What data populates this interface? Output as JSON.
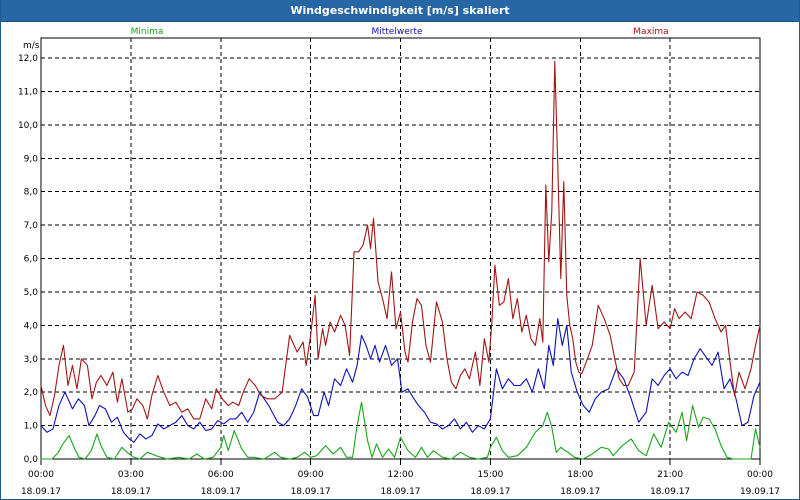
{
  "window": {
    "title": "Windgeschwindigkeit [m/s] skaliert"
  },
  "colors": {
    "title_bar": "#2766a4",
    "minima": "#18a61b",
    "mittelwerte": "#0d12b8",
    "maxima": "#a31515",
    "grid": "#000000",
    "text": "#000000"
  },
  "chart_data": {
    "type": "line",
    "ylabel": "m/s",
    "ylim": [
      0,
      12.6
    ],
    "yticks": [
      {
        "value": 0,
        "label": "0,0"
      },
      {
        "value": 1,
        "label": "1,0"
      },
      {
        "value": 2,
        "label": "2,0"
      },
      {
        "value": 3,
        "label": "3,0"
      },
      {
        "value": 4,
        "label": "4,0"
      },
      {
        "value": 5,
        "label": "5,0"
      },
      {
        "value": 6,
        "label": "6,0"
      },
      {
        "value": 7,
        "label": "7,0"
      },
      {
        "value": 8,
        "label": "8,0"
      },
      {
        "value": 9,
        "label": "9,0"
      },
      {
        "value": 10,
        "label": "10,0"
      },
      {
        "value": 11,
        "label": "11,0"
      },
      {
        "value": 12,
        "label": "12,0"
      }
    ],
    "xlim": [
      0,
      24
    ],
    "xticks": [
      {
        "value": 0,
        "time": "00:00",
        "date": "18.09.17"
      },
      {
        "value": 3,
        "time": "03:00",
        "date": "18.09.17"
      },
      {
        "value": 6,
        "time": "06:00",
        "date": "18.09.17"
      },
      {
        "value": 9,
        "time": "09:00",
        "date": "18.09.17"
      },
      {
        "value": 12,
        "time": "12:00",
        "date": "18.09.17"
      },
      {
        "value": 15,
        "time": "15:00",
        "date": "18.09.17"
      },
      {
        "value": 18,
        "time": "18:00",
        "date": "18.09.17"
      },
      {
        "value": 21,
        "time": "21:00",
        "date": "18.09.17"
      },
      {
        "value": 24,
        "time": "00:00",
        "date": "19.09.17"
      }
    ],
    "grid": true,
    "legend_placement": "top",
    "series": [
      {
        "name": "Minima",
        "color": "#18a61b",
        "x": [
          0.0,
          0.37,
          0.58,
          0.73,
          0.94,
          1.1,
          1.27,
          1.47,
          1.68,
          1.87,
          2.0,
          2.2,
          2.45,
          2.7,
          2.9,
          3.1,
          3.3,
          3.55,
          3.9,
          4.2,
          4.6,
          4.95,
          5.2,
          5.45,
          5.75,
          6.0,
          6.1,
          6.25,
          6.45,
          6.7,
          6.9,
          7.1,
          7.45,
          7.8,
          8.0,
          8.3,
          8.55,
          8.8,
          9.0,
          9.2,
          9.5,
          9.75,
          10.0,
          10.2,
          10.4,
          10.55,
          10.7,
          10.9,
          11.05,
          11.2,
          11.4,
          11.6,
          11.8,
          12.0,
          12.25,
          12.5,
          12.7,
          12.9,
          13.1,
          13.4,
          13.7,
          14.0,
          14.3,
          14.6,
          14.9,
          15.0,
          15.2,
          15.4,
          15.6,
          15.9,
          16.2,
          16.5,
          16.75,
          16.9,
          17.05,
          17.2,
          17.35,
          17.5,
          17.6,
          17.8,
          18.1,
          18.4,
          18.7,
          18.95,
          19.1,
          19.4,
          19.7,
          19.95,
          20.2,
          20.45,
          20.7,
          20.95,
          21.2,
          21.4,
          21.55,
          21.75,
          21.95,
          22.1,
          22.3,
          22.5,
          22.7,
          22.9,
          23.1,
          23.4,
          23.7,
          23.85,
          24.0
        ],
        "values": [
          0.0,
          0.0,
          0.2,
          0.45,
          0.7,
          0.35,
          0.05,
          0.0,
          0.25,
          0.75,
          0.4,
          0.05,
          0.0,
          0.35,
          0.18,
          0.05,
          0.0,
          0.2,
          0.08,
          0.0,
          0.05,
          0.0,
          0.15,
          0.0,
          0.05,
          0.35,
          0.7,
          0.25,
          0.85,
          0.3,
          0.05,
          0.05,
          0.0,
          0.2,
          0.05,
          0.0,
          0.05,
          0.2,
          0.05,
          0.1,
          0.4,
          0.15,
          0.35,
          0.05,
          0.05,
          1.0,
          1.7,
          0.55,
          0.05,
          0.45,
          0.05,
          0.3,
          0.05,
          0.65,
          0.25,
          0.05,
          0.35,
          0.05,
          0.25,
          0.05,
          0.0,
          0.2,
          0.05,
          0.0,
          0.05,
          0.35,
          0.65,
          0.25,
          0.05,
          0.1,
          0.35,
          0.8,
          1.0,
          1.4,
          0.95,
          0.2,
          0.35,
          0.25,
          0.2,
          0.05,
          0.0,
          0.15,
          0.35,
          0.3,
          0.1,
          0.4,
          0.6,
          0.25,
          0.1,
          0.75,
          0.35,
          1.1,
          0.8,
          1.4,
          0.55,
          1.6,
          0.95,
          1.25,
          1.2,
          0.9,
          0.4,
          0.05,
          0.0,
          0.0,
          0.0,
          0.9,
          0.35
        ]
      },
      {
        "name": "Mittelwerte",
        "color": "#0d12b8",
        "x": [
          0.0,
          0.2,
          0.4,
          0.6,
          0.8,
          1.05,
          1.25,
          1.45,
          1.6,
          1.8,
          1.95,
          2.15,
          2.35,
          2.55,
          2.75,
          2.95,
          3.1,
          3.3,
          3.5,
          3.7,
          3.9,
          4.1,
          4.3,
          4.5,
          4.7,
          4.9,
          5.1,
          5.3,
          5.5,
          5.7,
          5.9,
          6.1,
          6.3,
          6.5,
          6.7,
          6.9,
          7.1,
          7.3,
          7.6,
          7.9,
          8.1,
          8.3,
          8.5,
          8.7,
          8.9,
          9.1,
          9.25,
          9.45,
          9.6,
          9.8,
          10.0,
          10.2,
          10.4,
          10.55,
          10.7,
          10.85,
          11.0,
          11.15,
          11.3,
          11.5,
          11.7,
          11.9,
          12.05,
          12.25,
          12.45,
          12.6,
          12.8,
          13.0,
          13.2,
          13.4,
          13.6,
          13.8,
          14.0,
          14.2,
          14.4,
          14.6,
          14.8,
          15.0,
          15.2,
          15.4,
          15.6,
          15.8,
          16.0,
          16.2,
          16.4,
          16.6,
          16.8,
          16.95,
          17.1,
          17.25,
          17.4,
          17.55,
          17.7,
          17.9,
          18.1,
          18.3,
          18.5,
          18.7,
          18.95,
          19.2,
          19.45,
          19.7,
          19.95,
          20.2,
          20.4,
          20.6,
          20.8,
          21.0,
          21.2,
          21.4,
          21.6,
          21.8,
          22.0,
          22.2,
          22.4,
          22.6,
          22.8,
          23.0,
          23.2,
          23.4,
          23.6,
          23.8,
          24.0
        ],
        "values": [
          1.0,
          0.8,
          0.9,
          1.6,
          2.0,
          1.5,
          1.8,
          1.6,
          1.0,
          1.3,
          1.6,
          1.5,
          1.1,
          1.25,
          0.8,
          0.6,
          0.5,
          0.75,
          0.6,
          0.7,
          1.05,
          0.9,
          1.0,
          1.1,
          1.3,
          1.0,
          0.9,
          1.1,
          0.85,
          0.9,
          1.15,
          1.05,
          1.2,
          1.2,
          1.4,
          1.1,
          1.4,
          2.0,
          1.6,
          1.1,
          1.0,
          1.2,
          1.6,
          2.1,
          1.85,
          1.3,
          1.3,
          2.0,
          1.6,
          2.4,
          2.2,
          2.7,
          2.3,
          2.8,
          3.7,
          3.4,
          3.0,
          3.4,
          2.9,
          3.4,
          2.8,
          3.0,
          2.0,
          2.1,
          1.8,
          1.6,
          1.4,
          1.1,
          1.05,
          0.9,
          1.0,
          1.2,
          0.9,
          1.1,
          0.8,
          1.0,
          0.9,
          1.2,
          2.7,
          2.1,
          2.4,
          2.2,
          2.2,
          2.4,
          2.0,
          2.7,
          2.1,
          3.4,
          2.8,
          4.2,
          3.4,
          4.0,
          2.6,
          2.0,
          1.6,
          1.4,
          1.8,
          2.0,
          2.1,
          2.7,
          2.4,
          1.8,
          1.1,
          1.4,
          2.4,
          2.2,
          2.5,
          2.7,
          2.4,
          2.6,
          2.5,
          3.0,
          3.3,
          3.05,
          2.8,
          3.2,
          2.1,
          2.4,
          1.8,
          1.0,
          1.1,
          1.9,
          2.3
        ]
      },
      {
        "name": "Maxima",
        "color": "#a31515",
        "x": [
          0.0,
          0.15,
          0.3,
          0.45,
          0.6,
          0.75,
          0.9,
          1.05,
          1.2,
          1.35,
          1.55,
          1.7,
          1.85,
          2.0,
          2.2,
          2.4,
          2.55,
          2.7,
          2.9,
          3.05,
          3.2,
          3.4,
          3.55,
          3.7,
          3.9,
          4.1,
          4.3,
          4.5,
          4.7,
          4.9,
          5.1,
          5.3,
          5.5,
          5.7,
          5.85,
          6.05,
          6.25,
          6.4,
          6.6,
          6.75,
          6.95,
          7.15,
          7.35,
          7.55,
          7.8,
          8.05,
          8.3,
          8.55,
          8.75,
          8.85,
          9.0,
          9.15,
          9.25,
          9.4,
          9.5,
          9.65,
          9.8,
          10.0,
          10.15,
          10.3,
          10.45,
          10.6,
          10.75,
          10.9,
          11.0,
          11.1,
          11.25,
          11.4,
          11.55,
          11.7,
          11.85,
          12.0,
          12.15,
          12.25,
          12.4,
          12.55,
          12.7,
          12.85,
          13.0,
          13.2,
          13.4,
          13.55,
          13.7,
          13.85,
          14.0,
          14.15,
          14.3,
          14.5,
          14.65,
          14.8,
          14.95,
          15.05,
          15.15,
          15.3,
          15.45,
          15.6,
          15.75,
          15.9,
          16.05,
          16.2,
          16.35,
          16.5,
          16.65,
          16.75,
          16.85,
          16.95,
          17.05,
          17.15,
          17.25,
          17.35,
          17.45,
          17.55,
          17.65,
          17.75,
          17.85,
          17.95,
          18.05,
          18.2,
          18.4,
          18.6,
          18.8,
          19.0,
          19.15,
          19.3,
          19.45,
          19.6,
          19.8,
          20.0,
          20.2,
          20.4,
          20.6,
          20.8,
          21.0,
          21.15,
          21.3,
          21.5,
          21.7,
          21.9,
          22.1,
          22.3,
          22.5,
          22.7,
          22.85,
          23.0,
          23.15,
          23.3,
          23.5,
          23.7,
          23.85,
          24.0
        ],
        "values": [
          2.2,
          1.6,
          1.3,
          1.9,
          2.8,
          3.4,
          2.2,
          2.8,
          2.1,
          3.0,
          2.8,
          1.8,
          2.3,
          2.5,
          2.2,
          2.6,
          1.7,
          2.4,
          1.4,
          1.5,
          1.8,
          1.6,
          1.2,
          1.9,
          2.5,
          2.0,
          1.6,
          1.7,
          1.4,
          1.5,
          1.2,
          1.2,
          1.8,
          1.5,
          2.1,
          1.8,
          1.6,
          1.7,
          1.6,
          2.0,
          2.4,
          2.2,
          1.9,
          1.8,
          1.8,
          2.0,
          3.7,
          3.2,
          3.5,
          2.8,
          3.7,
          4.9,
          3.0,
          3.9,
          3.4,
          4.1,
          3.8,
          4.3,
          4.0,
          3.1,
          6.2,
          6.2,
          6.4,
          7.0,
          6.3,
          7.2,
          5.3,
          4.8,
          4.2,
          5.6,
          3.9,
          4.4,
          3.2,
          2.9,
          4.1,
          4.8,
          4.6,
          3.4,
          2.9,
          4.7,
          4.1,
          3.0,
          2.3,
          2.1,
          2.5,
          2.7,
          2.4,
          3.2,
          2.2,
          3.6,
          2.9,
          4.1,
          5.8,
          4.6,
          4.7,
          5.4,
          4.2,
          4.8,
          3.8,
          4.3,
          3.6,
          3.4,
          4.2,
          3.5,
          8.2,
          5.9,
          7.4,
          11.9,
          8.8,
          5.4,
          8.3,
          4.9,
          4.0,
          3.6,
          2.9,
          2.6,
          2.55,
          2.9,
          3.4,
          4.6,
          4.2,
          3.7,
          3.0,
          2.4,
          2.2,
          2.2,
          2.6,
          6.0,
          4.0,
          5.2,
          3.9,
          4.1,
          3.9,
          4.5,
          4.2,
          4.4,
          4.2,
          5.0,
          4.9,
          4.7,
          4.2,
          3.8,
          4.0,
          2.9,
          1.9,
          2.6,
          2.1,
          2.7,
          3.4,
          4.0
        ]
      }
    ]
  }
}
